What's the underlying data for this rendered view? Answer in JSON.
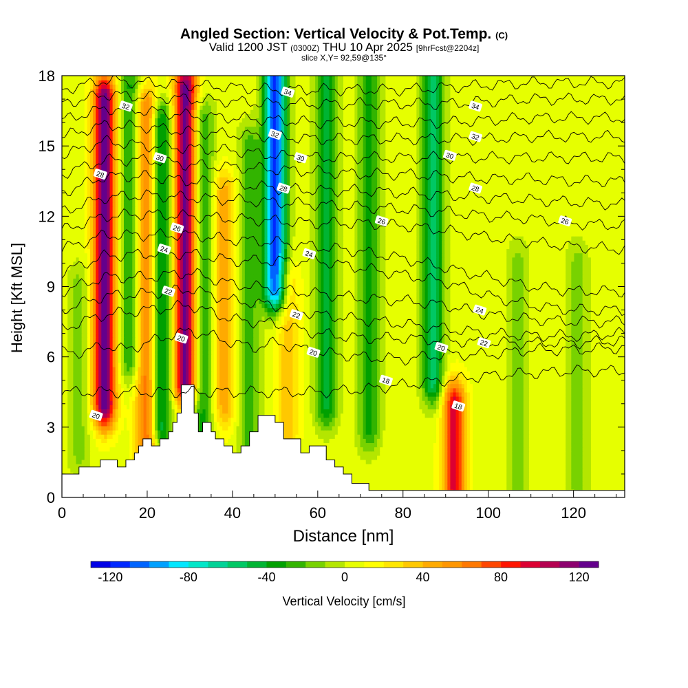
{
  "header": {
    "title": "Angled Section: Vertical Velocity & Pot.Temp.",
    "title_tag": "(C)",
    "valid_prefix": "Valid 1200 JST",
    "valid_utc": "(0300Z)",
    "valid_date": "THU 10 Apr 2025",
    "forecast": "[9hrFcst@2204z]",
    "slice": "slice X,Y= 92,59@135°"
  },
  "chart_data": {
    "type": "heatmap",
    "title": "Angled Section: Vertical Velocity & Pot.Temp.",
    "xlabel": "Distance [nm]",
    "ylabel": "Height [Kft MSL]",
    "xlim": [
      0,
      132
    ],
    "ylim": [
      0,
      18
    ],
    "x_ticks": [
      0,
      20,
      40,
      60,
      80,
      100,
      120
    ],
    "y_ticks": [
      0,
      3,
      6,
      9,
      12,
      15,
      18
    ],
    "colorbar": {
      "label": "Vertical Velocity [cm/s]",
      "range": [
        -130,
        130
      ],
      "step": 10,
      "ticks": [
        -120,
        -80,
        -40,
        0,
        40,
        80,
        120
      ],
      "colors": [
        "#0000e6",
        "#0028ff",
        "#0064ff",
        "#00a0ff",
        "#00e6ff",
        "#00e6c8",
        "#00d296",
        "#00c864",
        "#00b432",
        "#00a000",
        "#32b400",
        "#78d200",
        "#b4e600",
        "#e6ff00",
        "#ffff00",
        "#ffe600",
        "#ffc800",
        "#ffaa00",
        "#ff9600",
        "#ff7800",
        "#ff4600",
        "#ff1400",
        "#dc0032",
        "#b40050",
        "#8c006e",
        "#64008c"
      ]
    },
    "velocity_features": [
      {
        "x": 10,
        "y_bottom": 4,
        "y_top": 17,
        "value": 120
      },
      {
        "x": 4,
        "y_bottom": 2,
        "y_top": 9,
        "value": -20
      },
      {
        "x": 20,
        "y_bottom": 1.5,
        "y_top": 16.5,
        "value": 70
      },
      {
        "x": 16,
        "y_bottom": 6,
        "y_top": 17.5,
        "value": -40
      },
      {
        "x": 23,
        "y_bottom": 3,
        "y_top": 16,
        "value": -60
      },
      {
        "x": 29,
        "y_bottom": 5,
        "y_top": 17.5,
        "value": 120
      },
      {
        "x": 33,
        "y_bottom": 3,
        "y_top": 16,
        "value": -40
      },
      {
        "x": 38,
        "y_bottom": 4,
        "y_top": 13,
        "value": 40
      },
      {
        "x": 44,
        "y_bottom": 2,
        "y_top": 15,
        "value": -30
      },
      {
        "x": 50,
        "y_bottom": 9,
        "y_top": 18,
        "value": -120
      },
      {
        "x": 53,
        "y_bottom": 3,
        "y_top": 9,
        "value": 30
      },
      {
        "x": 62,
        "y_bottom": 4,
        "y_top": 18,
        "value": -50
      },
      {
        "x": 72,
        "y_bottom": 3,
        "y_top": 18,
        "value": -40
      },
      {
        "x": 87,
        "y_bottom": 5,
        "y_top": 18,
        "value": -60
      },
      {
        "x": 92,
        "y_bottom": 0.5,
        "y_top": 4,
        "value": 90
      },
      {
        "x": 107,
        "y_bottom": 0.5,
        "y_top": 10,
        "value": -20
      },
      {
        "x": 121,
        "y_bottom": 0.5,
        "y_top": 10,
        "value": -20
      }
    ],
    "terrain": {
      "x": [
        0,
        4,
        4,
        9,
        9,
        13,
        13,
        15,
        15,
        17,
        17,
        18,
        18,
        19,
        19,
        21,
        21,
        23,
        23,
        25,
        25,
        26,
        26,
        27,
        27,
        28,
        28,
        31,
        31,
        32,
        32,
        33,
        33,
        35,
        35,
        36,
        36,
        38,
        38,
        40,
        40,
        42,
        42,
        44,
        44,
        46,
        46,
        50,
        50,
        52,
        52,
        56,
        56,
        58,
        58,
        62,
        62,
        64,
        64,
        66,
        66,
        68,
        68,
        72,
        72,
        132
      ],
      "y": [
        1,
        1,
        1.3,
        1.3,
        1.6,
        1.6,
        1.3,
        1.3,
        1.6,
        1.6,
        1.9,
        1.9,
        2.2,
        2.2,
        2.5,
        2.5,
        2.2,
        2.2,
        2.5,
        2.5,
        2.8,
        2.8,
        3.2,
        3.2,
        3.6,
        3.6,
        4.8,
        4.8,
        3.6,
        3.6,
        2.8,
        2.8,
        3.2,
        3.2,
        2.8,
        2.8,
        2.5,
        2.5,
        2.2,
        2.2,
        1.9,
        1.9,
        2.2,
        2.2,
        2.8,
        2.8,
        3.5,
        3.5,
        3.2,
        3.2,
        2.5,
        2.5,
        1.9,
        1.9,
        2.2,
        2.2,
        1.6,
        1.6,
        1.3,
        1.3,
        1,
        1,
        0.6,
        0.6,
        0.3,
        0.3
      ]
    },
    "theta_contours": [
      {
        "level": 18,
        "label": "18",
        "x": [
          60,
          70,
          80,
          90,
          100,
          110,
          120,
          132
        ],
        "y": [
          4.5,
          4.6,
          4.8,
          5.0,
          5.2,
          5.3,
          5.4,
          5.4
        ]
      },
      {
        "level": 20,
        "label": "20",
        "x": [
          5,
          10,
          15,
          20,
          25,
          30,
          35,
          40,
          45,
          50,
          55,
          60,
          70,
          80,
          90,
          100,
          110,
          120,
          132
        ],
        "y": [
          6.2,
          6.5,
          6.3,
          6.6,
          6.9,
          7.1,
          6.9,
          6.6,
          6.4,
          6.6,
          6.4,
          6.2,
          6.0,
          5.9,
          6.1,
          6.1,
          6.3,
          6.3,
          6.4
        ]
      },
      {
        "level": 21,
        "label": "",
        "x": [
          0,
          10,
          20,
          30,
          40,
          50,
          60,
          70,
          80,
          90,
          100,
          110,
          120,
          132
        ],
        "y": [
          7.2,
          7.8,
          8.0,
          8.2,
          7.6,
          7.4,
          7.0,
          6.8,
          6.8,
          6.7,
          6.6,
          6.6,
          6.6,
          6.7
        ]
      },
      {
        "level": 22,
        "label": "22",
        "x": [
          0,
          10,
          20,
          30,
          40,
          50,
          60,
          70,
          80,
          90,
          100,
          110,
          120,
          132
        ],
        "y": [
          8.0,
          8.6,
          8.7,
          8.9,
          8.4,
          8.2,
          7.8,
          7.6,
          7.4,
          7.2,
          7.0,
          6.9,
          6.9,
          7.0
        ]
      },
      {
        "level": 23,
        "label": "",
        "x": [
          0,
          10,
          20,
          30,
          40,
          50,
          60,
          70,
          80,
          90,
          100,
          110,
          120,
          132
        ],
        "y": [
          8.8,
          9.4,
          9.4,
          9.6,
          9.1,
          8.9,
          8.7,
          8.5,
          8.4,
          8.2,
          7.8,
          7.6,
          7.5,
          7.5
        ]
      },
      {
        "level": 24,
        "label": "24",
        "x": [
          0,
          10,
          20,
          30,
          40,
          50,
          60,
          70,
          80,
          90,
          100,
          110,
          120,
          132
        ],
        "y": [
          9.6,
          10.3,
          10.4,
          10.4,
          10.1,
          10.1,
          10.1,
          9.8,
          9.5,
          9.2,
          8.6,
          8.2,
          8.0,
          8.0
        ]
      },
      {
        "level": 25,
        "label": "",
        "x": [
          0,
          10,
          20,
          30,
          40,
          50,
          60,
          70,
          80,
          90,
          100,
          110,
          120,
          132
        ],
        "y": [
          10.6,
          11.2,
          11.2,
          11.2,
          11.0,
          10.9,
          10.7,
          10.5,
          10.2,
          9.8,
          9.4,
          9.0,
          8.8,
          8.8
        ]
      },
      {
        "level": 26,
        "label": "26",
        "x": [
          0,
          10,
          20,
          30,
          40,
          50,
          60,
          70,
          80,
          90,
          100,
          110,
          120,
          132
        ],
        "y": [
          11.4,
          12.0,
          12.1,
          12.0,
          11.9,
          11.8,
          11.7,
          11.7,
          11.6,
          11.4,
          11.1,
          10.9,
          10.7,
          10.6
        ]
      },
      {
        "level": 27,
        "label": "",
        "x": [
          0,
          10,
          20,
          30,
          40,
          50,
          60,
          70,
          80,
          90,
          100,
          110,
          120,
          132
        ],
        "y": [
          12.2,
          12.8,
          12.9,
          12.8,
          12.7,
          12.6,
          12.5,
          12.4,
          12.3,
          12.2,
          12.0,
          11.9,
          11.7,
          11.6
        ]
      },
      {
        "level": 28,
        "label": "28",
        "x": [
          0,
          10,
          20,
          30,
          40,
          50,
          60,
          70,
          80,
          90,
          100,
          110,
          120,
          132
        ],
        "y": [
          13.0,
          13.7,
          13.7,
          13.5,
          13.4,
          13.2,
          13.1,
          13.1,
          13.0,
          12.9,
          12.8,
          12.7,
          12.6,
          12.5
        ]
      },
      {
        "level": 29,
        "label": "",
        "x": [
          0,
          10,
          20,
          30,
          40,
          50,
          60,
          70,
          80,
          90,
          100,
          110,
          120,
          132
        ],
        "y": [
          13.8,
          14.4,
          14.4,
          14.2,
          14.1,
          14.0,
          13.9,
          13.8,
          13.8,
          13.7,
          13.6,
          13.6,
          13.5,
          13.5
        ]
      },
      {
        "level": 30,
        "label": "30",
        "x": [
          0,
          10,
          20,
          30,
          40,
          50,
          60,
          70,
          80,
          90,
          100,
          110,
          120,
          132
        ],
        "y": [
          14.6,
          15.2,
          15.0,
          14.9,
          14.8,
          14.6,
          14.5,
          14.5,
          14.5,
          14.5,
          14.5,
          14.5,
          14.5,
          14.5
        ]
      },
      {
        "level": 31,
        "label": "",
        "x": [
          0,
          10,
          20,
          30,
          40,
          50,
          60,
          70,
          80,
          90,
          100,
          110,
          120,
          132
        ],
        "y": [
          15.4,
          15.9,
          15.8,
          15.6,
          15.5,
          15.4,
          15.3,
          15.3,
          15.3,
          15.3,
          15.3,
          15.4,
          15.4,
          15.4
        ]
      },
      {
        "level": 32,
        "label": "32",
        "x": [
          0,
          10,
          20,
          30,
          40,
          50,
          60,
          70,
          80,
          90,
          100,
          110,
          120,
          132
        ],
        "y": [
          16.1,
          16.6,
          16.5,
          16.3,
          16.2,
          16.1,
          16.0,
          16.0,
          16.0,
          16.0,
          16.1,
          16.2,
          16.2,
          16.2
        ]
      },
      {
        "level": 33,
        "label": "",
        "x": [
          0,
          10,
          20,
          30,
          40,
          50,
          60,
          70,
          80,
          90,
          100,
          110,
          120,
          132
        ],
        "y": [
          16.8,
          17.2,
          17.1,
          17.0,
          16.9,
          16.8,
          16.8,
          16.8,
          16.8,
          16.8,
          16.9,
          17.0,
          17.0,
          17.0
        ]
      },
      {
        "level": 34,
        "label": "34",
        "x": [
          0,
          10,
          20,
          30,
          40,
          50,
          60,
          70,
          80,
          90,
          100,
          110,
          120,
          132
        ],
        "y": [
          17.4,
          17.8,
          17.7,
          17.6,
          17.5,
          17.4,
          17.4,
          17.4,
          17.4,
          17.5,
          17.6,
          17.7,
          17.7,
          17.7
        ]
      }
    ],
    "contour_labels": [
      {
        "text": "32",
        "x": 15,
        "y": 16.7
      },
      {
        "text": "28",
        "x": 9,
        "y": 13.8
      },
      {
        "text": "30",
        "x": 23,
        "y": 14.5
      },
      {
        "text": "26",
        "x": 27,
        "y": 11.5
      },
      {
        "text": "24",
        "x": 24,
        "y": 10.6
      },
      {
        "text": "22",
        "x": 25,
        "y": 8.8
      },
      {
        "text": "20",
        "x": 28,
        "y": 6.8
      },
      {
        "text": "20",
        "x": 8,
        "y": 3.5
      },
      {
        "text": "34",
        "x": 53,
        "y": 17.3
      },
      {
        "text": "32",
        "x": 50,
        "y": 15.5
      },
      {
        "text": "30",
        "x": 56,
        "y": 14.5
      },
      {
        "text": "28",
        "x": 52,
        "y": 13.2
      },
      {
        "text": "24",
        "x": 58,
        "y": 10.4
      },
      {
        "text": "22",
        "x": 55,
        "y": 7.8
      },
      {
        "text": "20",
        "x": 59,
        "y": 6.2
      },
      {
        "text": "26",
        "x": 75,
        "y": 11.8
      },
      {
        "text": "18",
        "x": 76,
        "y": 5.0
      },
      {
        "text": "34",
        "x": 97,
        "y": 16.7
      },
      {
        "text": "32",
        "x": 97,
        "y": 15.4
      },
      {
        "text": "30",
        "x": 91,
        "y": 14.6
      },
      {
        "text": "28",
        "x": 97,
        "y": 13.2
      },
      {
        "text": "26",
        "x": 118,
        "y": 11.8
      },
      {
        "text": "24",
        "x": 98,
        "y": 8.0
      },
      {
        "text": "22",
        "x": 99,
        "y": 6.6
      },
      {
        "text": "20",
        "x": 89,
        "y": 6.4
      },
      {
        "text": "18",
        "x": 93,
        "y": 3.9
      }
    ]
  }
}
